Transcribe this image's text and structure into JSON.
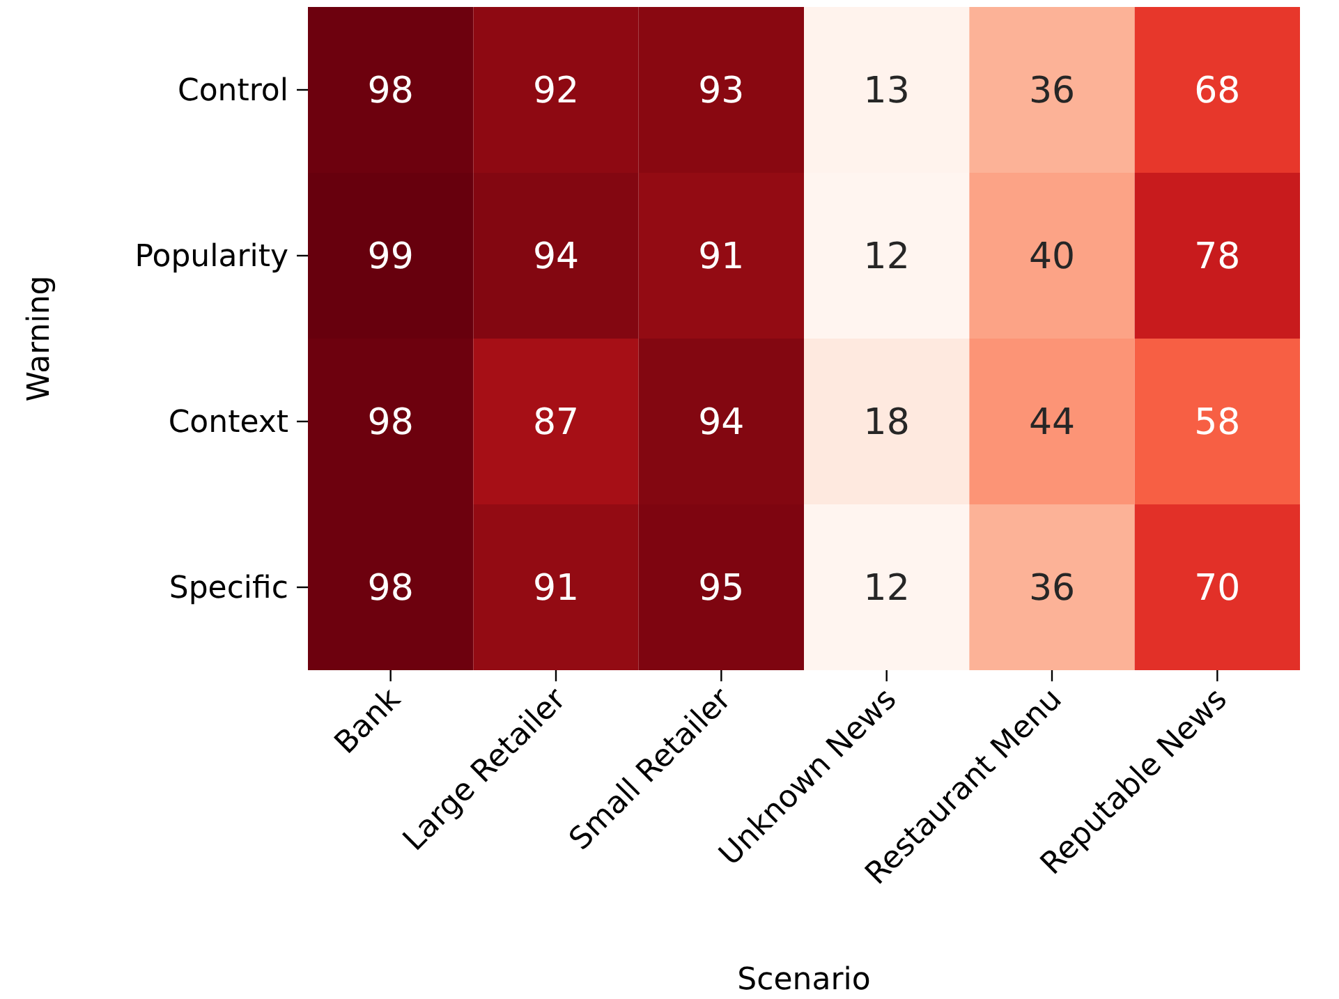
{
  "chart_data": {
    "type": "heatmap",
    "xlabel": "Scenario",
    "ylabel": "Warning",
    "categories": [
      "Bank",
      "Large Retailer",
      "Small Retailer",
      "Unknown News",
      "Restaurant Menu",
      "Reputable News"
    ],
    "y_categories": [
      "Control",
      "Popularity",
      "Context",
      "Specific"
    ],
    "cells": [
      [
        98,
        92,
        93,
        13,
        36,
        68
      ],
      [
        99,
        94,
        91,
        12,
        40,
        78
      ],
      [
        98,
        87,
        94,
        18,
        44,
        58
      ],
      [
        98,
        91,
        95,
        12,
        36,
        70
      ]
    ],
    "data_labels": true
  }
}
